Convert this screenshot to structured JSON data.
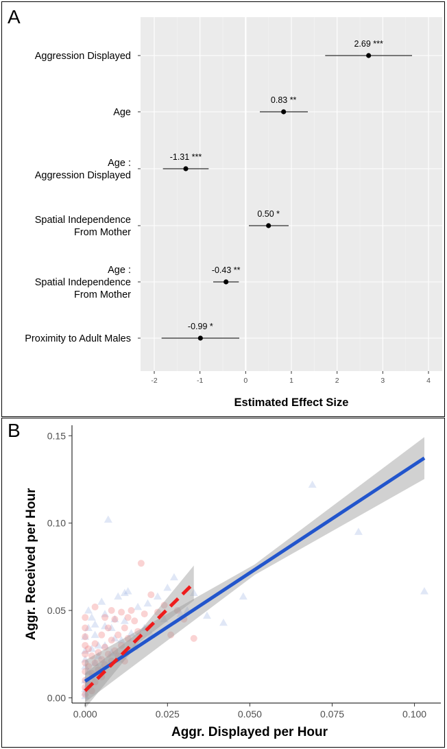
{
  "chart_data": [
    {
      "type": "forest",
      "panel_label": "A",
      "xlabel": "Estimated Effect Size",
      "xlim": [
        -2.3,
        4.3
      ],
      "xticks": [
        -2,
        -1,
        0,
        1,
        2,
        3,
        4
      ],
      "grid": true,
      "terms": [
        {
          "label_lines": [
            "Aggression Displayed"
          ],
          "estimate": 2.69,
          "ci": [
            1.74,
            3.64
          ],
          "annotation": "2.69 ***"
        },
        {
          "label_lines": [
            "Age"
          ],
          "estimate": 0.83,
          "ci": [
            0.31,
            1.36
          ],
          "annotation": "0.83 **"
        },
        {
          "label_lines": [
            "Age :",
            "Aggression Displayed"
          ],
          "estimate": -1.31,
          "ci": [
            -1.81,
            -0.81
          ],
          "annotation": "-1.31 ***"
        },
        {
          "label_lines": [
            "Spatial Independence",
            "From Mother"
          ],
          "estimate": 0.5,
          "ci": [
            0.07,
            0.94
          ],
          "annotation": "0.50 *"
        },
        {
          "label_lines": [
            "Age :",
            "Spatial Independence",
            "From Mother"
          ],
          "estimate": -0.43,
          "ci": [
            -0.71,
            -0.15
          ],
          "annotation": "-0.43 **"
        },
        {
          "label_lines": [
            "Proximity to Adult Males"
          ],
          "estimate": -0.99,
          "ci": [
            -1.84,
            -0.14
          ],
          "annotation": "-0.99 *"
        }
      ]
    },
    {
      "type": "scatter",
      "panel_label": "B",
      "xlabel": "Aggr. Displayed per Hour",
      "ylabel": "Aggr. Received per Hour",
      "xlim": [
        -0.004,
        0.108
      ],
      "ylim": [
        -0.003,
        0.156
      ],
      "xticks": [
        0.0,
        0.025,
        0.05,
        0.075,
        0.1
      ],
      "xtick_labels": [
        "0.000",
        "0.025",
        "0.050",
        "0.075",
        "0.100"
      ],
      "yticks": [
        0.0,
        0.05,
        0.1,
        0.15
      ],
      "ytick_labels": [
        "0.00",
        "0.05",
        "0.10",
        "0.15"
      ],
      "grid": false,
      "series": [
        {
          "marker": "triangle",
          "color": "#8fa9e0",
          "points": [
            [
              0.103,
              0.061
            ],
            [
              0.083,
              0.095
            ],
            [
              0.069,
              0.122
            ],
            [
              0.048,
              0.058
            ],
            [
              0.042,
              0.043
            ],
            [
              0.037,
              0.047
            ],
            [
              0.031,
              0.05
            ],
            [
              0.027,
              0.069
            ],
            [
              0.025,
              0.063
            ],
            [
              0.022,
              0.058
            ],
            [
              0.019,
              0.054
            ],
            [
              0.016,
              0.052
            ],
            [
              0.013,
              0.061
            ],
            [
              0.012,
              0.06
            ],
            [
              0.01,
              0.058
            ],
            [
              0.009,
              0.045
            ],
            [
              0.007,
              0.102
            ],
            [
              0.006,
              0.041
            ],
            [
              0.005,
              0.055
            ],
            [
              0.004,
              0.03
            ],
            [
              0.003,
              0.036
            ],
            [
              0.002,
              0.046
            ],
            [
              0.001,
              0.04
            ],
            [
              0.0,
              0.035
            ],
            [
              0.0,
              0.027
            ],
            [
              0.0,
              0.022
            ],
            [
              0.0,
              0.018
            ],
            [
              0.001,
              0.015
            ],
            [
              0.002,
              0.012
            ],
            [
              0.0,
              0.01
            ],
            [
              0.001,
              0.008
            ],
            [
              0.0,
              0.005
            ],
            [
              0.0,
              0.003
            ],
            [
              0.0,
              0.001
            ],
            [
              0.003,
              0.02
            ],
            [
              0.004,
              0.024
            ],
            [
              0.005,
              0.017
            ],
            [
              0.006,
              0.03
            ],
            [
              0.008,
              0.026
            ],
            [
              0.01,
              0.022
            ],
            [
              0.011,
              0.033
            ],
            [
              0.014,
              0.037
            ],
            [
              0.015,
              0.029
            ],
            [
              0.018,
              0.04
            ],
            [
              0.02,
              0.036
            ],
            [
              0.024,
              0.045
            ],
            [
              0.029,
              0.048
            ],
            [
              0.033,
              0.06
            ],
            [
              0.008,
              0.04
            ],
            [
              0.012,
              0.044
            ],
            [
              0.002,
              0.028
            ],
            [
              0.001,
              0.05
            ],
            [
              0.006,
              0.048
            ],
            [
              0.009,
              0.034
            ],
            [
              0.003,
              0.042
            ]
          ]
        },
        {
          "marker": "circle",
          "color": "#f08080",
          "points": [
            [
              0.0,
              0.046
            ],
            [
              0.0,
              0.04
            ],
            [
              0.0,
              0.035
            ],
            [
              0.0,
              0.03
            ],
            [
              0.0,
              0.025
            ],
            [
              0.0,
              0.02
            ],
            [
              0.0,
              0.015
            ],
            [
              0.0,
              0.01
            ],
            [
              0.0,
              0.006
            ],
            [
              0.0,
              0.002
            ],
            [
              0.001,
              0.028
            ],
            [
              0.001,
              0.018
            ],
            [
              0.001,
              0.008
            ],
            [
              0.002,
              0.024
            ],
            [
              0.002,
              0.014
            ],
            [
              0.002,
              0.004
            ],
            [
              0.003,
              0.031
            ],
            [
              0.003,
              0.02
            ],
            [
              0.003,
              0.009
            ],
            [
              0.004,
              0.026
            ],
            [
              0.004,
              0.016
            ],
            [
              0.005,
              0.036
            ],
            [
              0.005,
              0.022
            ],
            [
              0.005,
              0.012
            ],
            [
              0.006,
              0.029
            ],
            [
              0.006,
              0.019
            ],
            [
              0.007,
              0.04
            ],
            [
              0.007,
              0.025
            ],
            [
              0.008,
              0.033
            ],
            [
              0.008,
              0.021
            ],
            [
              0.009,
              0.045
            ],
            [
              0.009,
              0.027
            ],
            [
              0.01,
              0.036
            ],
            [
              0.01,
              0.024
            ],
            [
              0.011,
              0.049
            ],
            [
              0.011,
              0.03
            ],
            [
              0.012,
              0.04
            ],
            [
              0.012,
              0.021
            ],
            [
              0.013,
              0.034
            ],
            [
              0.014,
              0.05
            ],
            [
              0.015,
              0.044
            ],
            [
              0.016,
              0.038
            ],
            [
              0.017,
              0.077
            ],
            [
              0.018,
              0.048
            ],
            [
              0.02,
              0.059
            ],
            [
              0.022,
              0.049
            ],
            [
              0.024,
              0.053
            ],
            [
              0.026,
              0.036
            ],
            [
              0.028,
              0.05
            ],
            [
              0.03,
              0.045
            ],
            [
              0.033,
              0.034
            ],
            [
              0.003,
              0.052
            ],
            [
              0.006,
              0.046
            ],
            [
              0.008,
              0.05
            ],
            [
              0.013,
              0.046
            ]
          ]
        }
      ],
      "fits": [
        {
          "color": "#2255cc",
          "style": "solid",
          "x_range": [
            0.0,
            0.103
          ],
          "intercept": 0.0095,
          "slope": 1.24,
          "band_halfwidth": [
            0.003,
            0.012
          ]
        },
        {
          "color": "#ee1c1c",
          "style": "dashed",
          "x_range": [
            0.0,
            0.033
          ],
          "intercept": 0.004,
          "slope": 1.87,
          "band_halfwidth": [
            0.003,
            0.01
          ]
        }
      ]
    }
  ]
}
